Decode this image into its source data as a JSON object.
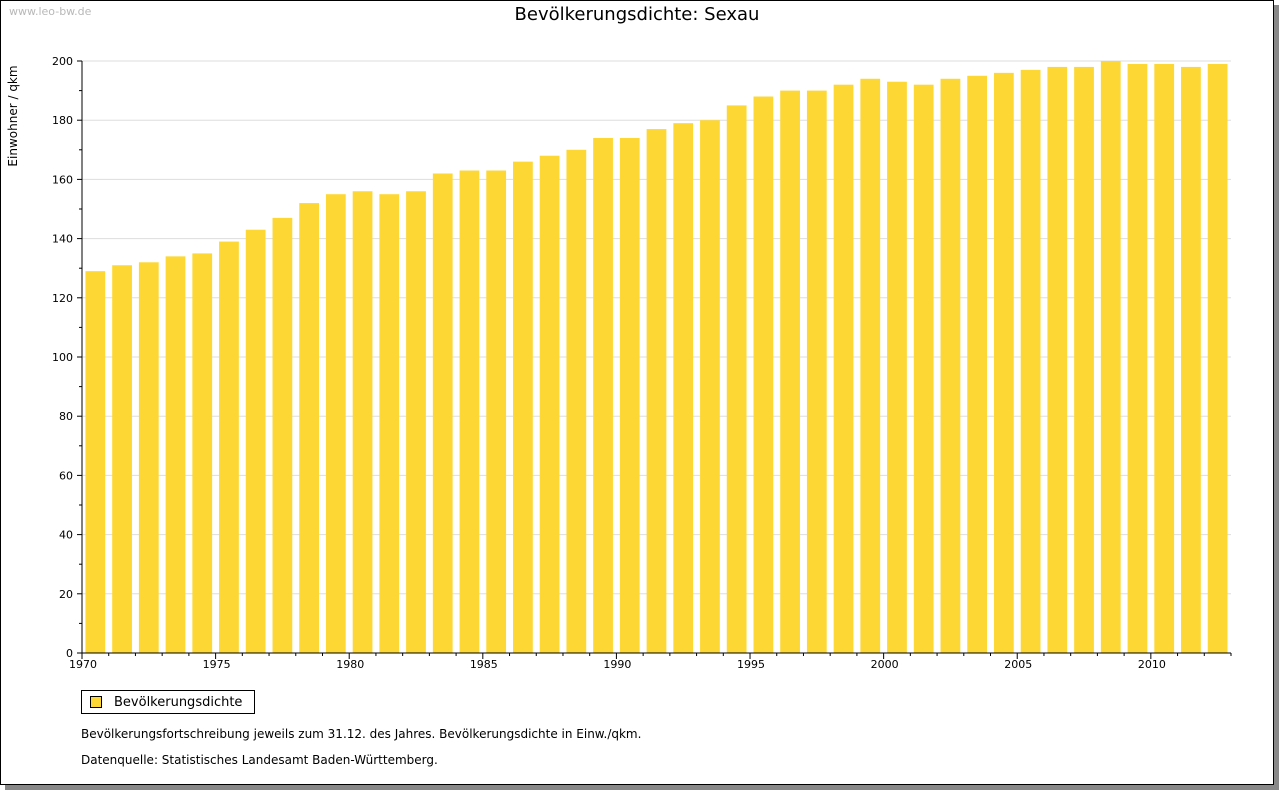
{
  "header": {
    "watermark": "www.leo-bw.de"
  },
  "legend": {
    "label": "Bevölkerungsdichte",
    "color": "#FDD835"
  },
  "notes": {
    "line1": "Bevölkerungsfortschreibung jeweils zum 31.12. des Jahres. Bevölkerungsdichte in Einw./qkm.",
    "line2": "Datenquelle: Statistisches Landesamt Baden-Württemberg."
  },
  "chart_data": {
    "type": "bar",
    "title": "Bevölkerungsdichte: Sexau",
    "xlabel": "",
    "ylabel": "Einwohner / qkm",
    "ylim": [
      0,
      200
    ],
    "y_ticks": [
      0,
      20,
      40,
      60,
      80,
      100,
      120,
      140,
      160,
      180,
      200
    ],
    "x_tick_labels": [
      "1970",
      "1975",
      "1980",
      "1985",
      "1990",
      "1995",
      "2000",
      "2005",
      "2010"
    ],
    "grid": true,
    "legend_position": "bottom-left",
    "bar_color": "#FDD835",
    "categories": [
      1970,
      1971,
      1972,
      1973,
      1974,
      1975,
      1976,
      1977,
      1978,
      1979,
      1980,
      1981,
      1982,
      1983,
      1984,
      1985,
      1986,
      1987,
      1988,
      1989,
      1990,
      1991,
      1992,
      1993,
      1994,
      1995,
      1996,
      1997,
      1998,
      1999,
      2000,
      2001,
      2002,
      2003,
      2004,
      2005,
      2006,
      2007,
      2008,
      2009,
      2010,
      2011,
      2012
    ],
    "series": [
      {
        "name": "Bevölkerungsdichte",
        "values": [
          129,
          131,
          132,
          134,
          135,
          139,
          143,
          147,
          152,
          155,
          156,
          155,
          156,
          162,
          163,
          163,
          166,
          168,
          170,
          174,
          174,
          177,
          179,
          180,
          185,
          188,
          190,
          190,
          192,
          194,
          193,
          192,
          194,
          195,
          196,
          197,
          198,
          198,
          200,
          199,
          199,
          198,
          199
        ]
      }
    ]
  }
}
